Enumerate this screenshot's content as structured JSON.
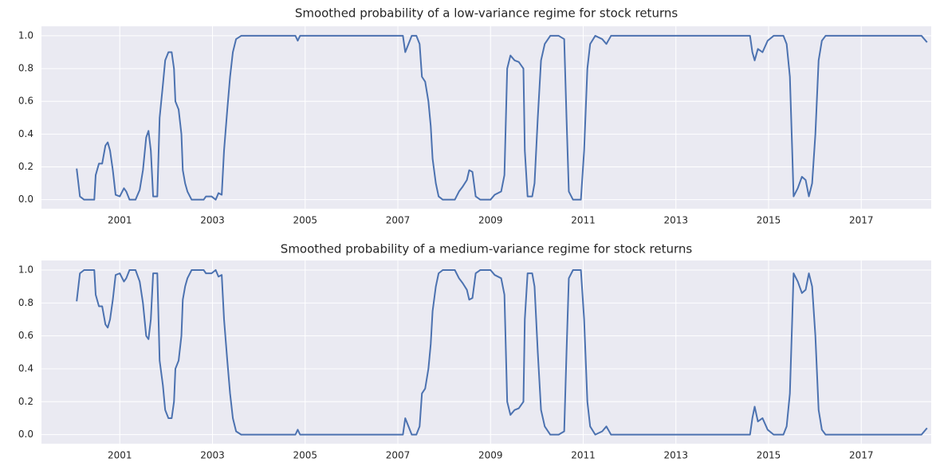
{
  "chart_data": [
    {
      "type": "line",
      "title": "Smoothed probability of a low-variance regime for stock returns",
      "x": [
        2000.07,
        2000.14,
        2000.23,
        2000.45,
        2000.48,
        2000.55,
        2000.62,
        2000.69,
        2000.74,
        2000.79,
        2000.85,
        2000.91,
        2001.0,
        2001.09,
        2001.14,
        2001.21,
        2001.34,
        2001.43,
        2001.5,
        2001.57,
        2001.62,
        2001.67,
        2001.72,
        2001.81,
        2001.86,
        2001.93,
        2001.98,
        2002.05,
        2002.12,
        2002.17,
        2002.2,
        2002.27,
        2002.33,
        2002.36,
        2002.41,
        2002.46,
        2002.55,
        2002.81,
        2002.86,
        2002.98,
        2003.07,
        2003.13,
        2003.2,
        2003.25,
        2003.32,
        2003.38,
        2003.44,
        2003.51,
        2003.62,
        2004.79,
        2004.84,
        2004.89,
        2007.11,
        2007.16,
        2007.23,
        2007.3,
        2007.4,
        2007.47,
        2007.52,
        2007.59,
        2007.66,
        2007.71,
        2007.75,
        2007.82,
        2007.88,
        2007.97,
        2008.23,
        2008.32,
        2008.4,
        2008.49,
        2008.54,
        2008.61,
        2008.68,
        2008.78,
        2009.0,
        2009.09,
        2009.23,
        2009.3,
        2009.36,
        2009.43,
        2009.52,
        2009.61,
        2009.71,
        2009.74,
        2009.8,
        2009.9,
        2009.95,
        2010.02,
        2010.09,
        2010.17,
        2010.29,
        2010.47,
        2010.59,
        2010.64,
        2010.69,
        2010.78,
        2010.95,
        2011.02,
        2011.09,
        2011.15,
        2011.26,
        2011.41,
        2011.5,
        2011.6,
        2014.6,
        2014.65,
        2014.7,
        2014.77,
        2014.87,
        2014.98,
        2015.11,
        2015.32,
        2015.39,
        2015.46,
        2015.51,
        2015.54,
        2015.63,
        2015.72,
        2015.8,
        2015.87,
        2015.94,
        2016.01,
        2016.08,
        2016.15,
        2016.23,
        2018.3,
        2018.42
      ],
      "series": [
        {
          "color": "#4c72b0",
          "values": [
            0.19,
            0.02,
            0,
            0,
            0.15,
            0.22,
            0.22,
            0.33,
            0.35,
            0.3,
            0.18,
            0.03,
            0.02,
            0.07,
            0.05,
            0,
            0,
            0.06,
            0.18,
            0.38,
            0.42,
            0.3,
            0.02,
            0.02,
            0.5,
            0.7,
            0.85,
            0.9,
            0.9,
            0.8,
            0.6,
            0.55,
            0.4,
            0.18,
            0.1,
            0.05,
            0,
            0,
            0.02,
            0.02,
            0,
            0.04,
            0.03,
            0.3,
            0.55,
            0.75,
            0.9,
            0.98,
            1,
            1,
            0.97,
            1,
            1,
            0.9,
            0.95,
            1,
            1,
            0.95,
            0.75,
            0.72,
            0.6,
            0.45,
            0.25,
            0.1,
            0.02,
            0,
            0,
            0.05,
            0.08,
            0.12,
            0.18,
            0.17,
            0.02,
            0,
            0,
            0.03,
            0.05,
            0.15,
            0.8,
            0.88,
            0.85,
            0.84,
            0.8,
            0.3,
            0.02,
            0.02,
            0.1,
            0.5,
            0.85,
            0.95,
            1,
            1,
            0.98,
            0.5,
            0.05,
            0,
            0,
            0.3,
            0.8,
            0.95,
            1,
            0.98,
            0.95,
            1,
            1,
            0.9,
            0.85,
            0.92,
            0.9,
            0.97,
            1,
            1,
            0.95,
            0.75,
            0.3,
            0.02,
            0.07,
            0.14,
            0.12,
            0.02,
            0.1,
            0.4,
            0.85,
            0.97,
            1,
            1,
            0.96
          ]
        }
      ],
      "xlim": [
        1999.31,
        2018.51
      ],
      "xticks": [
        2001,
        2003,
        2005,
        2007,
        2009,
        2011,
        2013,
        2015,
        2017
      ],
      "ylim": [
        -0.055,
        1.058
      ],
      "yticks": [
        {
          "value": 0,
          "label": "0.0"
        },
        0.2,
        0.4,
        0.6,
        0.8,
        {
          "value": 1,
          "label": "1.0"
        }
      ],
      "grid": true
    },
    {
      "type": "line",
      "title": "Smoothed probability of a medium-variance regime for stock returns",
      "x": [
        2000.07,
        2000.14,
        2000.23,
        2000.45,
        2000.48,
        2000.55,
        2000.62,
        2000.69,
        2000.74,
        2000.79,
        2000.85,
        2000.91,
        2001.0,
        2001.09,
        2001.14,
        2001.21,
        2001.34,
        2001.43,
        2001.5,
        2001.57,
        2001.62,
        2001.67,
        2001.72,
        2001.81,
        2001.86,
        2001.93,
        2001.98,
        2002.05,
        2002.12,
        2002.17,
        2002.2,
        2002.27,
        2002.33,
        2002.36,
        2002.41,
        2002.46,
        2002.55,
        2002.81,
        2002.86,
        2002.98,
        2003.07,
        2003.13,
        2003.2,
        2003.25,
        2003.32,
        2003.38,
        2003.44,
        2003.51,
        2003.62,
        2004.79,
        2004.84,
        2004.89,
        2007.11,
        2007.16,
        2007.23,
        2007.3,
        2007.4,
        2007.47,
        2007.52,
        2007.59,
        2007.66,
        2007.71,
        2007.75,
        2007.82,
        2007.88,
        2007.97,
        2008.23,
        2008.32,
        2008.4,
        2008.49,
        2008.54,
        2008.61,
        2008.68,
        2008.78,
        2009.0,
        2009.09,
        2009.23,
        2009.3,
        2009.36,
        2009.43,
        2009.52,
        2009.61,
        2009.71,
        2009.74,
        2009.8,
        2009.9,
        2009.95,
        2010.02,
        2010.09,
        2010.17,
        2010.29,
        2010.47,
        2010.59,
        2010.64,
        2010.69,
        2010.78,
        2010.95,
        2011.02,
        2011.09,
        2011.15,
        2011.26,
        2011.41,
        2011.5,
        2011.6,
        2014.6,
        2014.65,
        2014.7,
        2014.77,
        2014.87,
        2014.98,
        2015.11,
        2015.32,
        2015.39,
        2015.46,
        2015.51,
        2015.54,
        2015.63,
        2015.72,
        2015.8,
        2015.87,
        2015.94,
        2016.01,
        2016.08,
        2016.15,
        2016.23,
        2018.3,
        2018.42
      ],
      "series": [
        {
          "color": "#4c72b0",
          "values": [
            0.81,
            0.98,
            1,
            1,
            0.85,
            0.78,
            0.78,
            0.67,
            0.65,
            0.7,
            0.82,
            0.97,
            0.98,
            0.93,
            0.95,
            1,
            1,
            0.93,
            0.8,
            0.6,
            0.58,
            0.7,
            0.98,
            0.98,
            0.45,
            0.3,
            0.15,
            0.1,
            0.1,
            0.2,
            0.4,
            0.45,
            0.6,
            0.82,
            0.9,
            0.95,
            1,
            1,
            0.98,
            0.98,
            1,
            0.96,
            0.97,
            0.7,
            0.45,
            0.25,
            0.1,
            0.02,
            0,
            0,
            0.03,
            0,
            0,
            0.1,
            0.05,
            0,
            0,
            0.05,
            0.25,
            0.28,
            0.4,
            0.55,
            0.75,
            0.9,
            0.98,
            1,
            1,
            0.95,
            0.92,
            0.88,
            0.82,
            0.83,
            0.98,
            1,
            1,
            0.97,
            0.95,
            0.85,
            0.2,
            0.12,
            0.15,
            0.16,
            0.2,
            0.7,
            0.98,
            0.98,
            0.9,
            0.5,
            0.15,
            0.05,
            0,
            0,
            0.02,
            0.5,
            0.95,
            1,
            1,
            0.7,
            0.2,
            0.05,
            0,
            0.02,
            0.05,
            0,
            0,
            0.1,
            0.17,
            0.08,
            0.1,
            0.03,
            0,
            0,
            0.05,
            0.25,
            0.7,
            0.98,
            0.93,
            0.86,
            0.88,
            0.98,
            0.9,
            0.6,
            0.15,
            0.03,
            0,
            0,
            0.04
          ]
        }
      ],
      "xlim": [
        1999.31,
        2018.51
      ],
      "xticks": [
        2001,
        2003,
        2005,
        2007,
        2009,
        2011,
        2013,
        2015,
        2017
      ],
      "ylim": [
        -0.055,
        1.058
      ],
      "yticks": [
        {
          "value": 0,
          "label": "0.0"
        },
        0.2,
        0.4,
        0.6,
        0.8,
        {
          "value": 1,
          "label": "1.0"
        }
      ],
      "grid": true
    }
  ]
}
